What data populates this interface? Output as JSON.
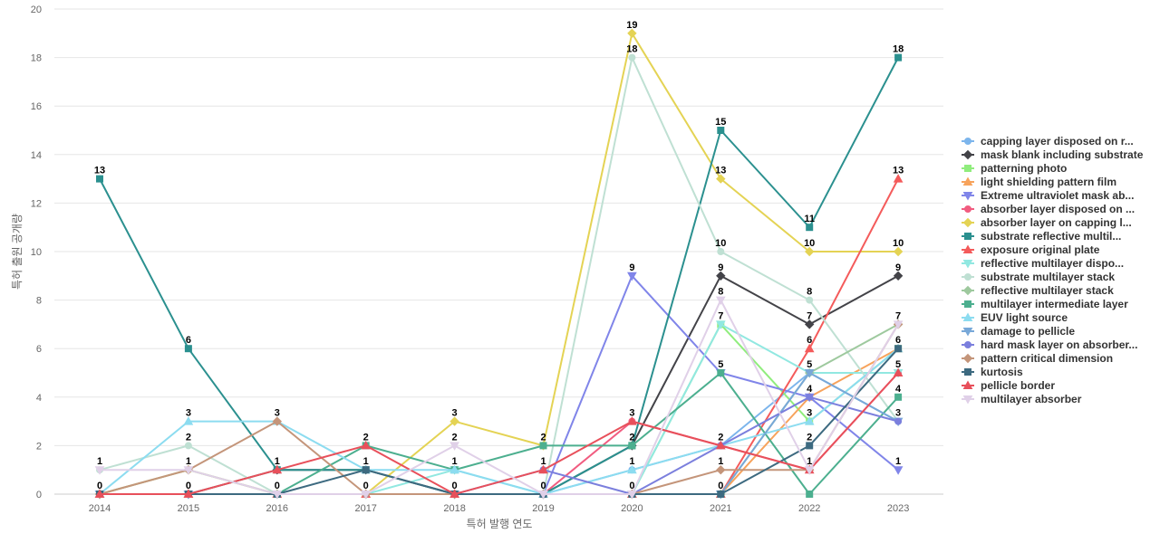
{
  "chart_data": {
    "type": "line",
    "xlabel": "특허 발행 연도",
    "ylabel": "특허 출원 공개량",
    "ylim": [
      0,
      20
    ],
    "yticks": [
      0,
      2,
      4,
      6,
      8,
      10,
      12,
      14,
      16,
      18,
      20
    ],
    "categories": [
      "2014",
      "2015",
      "2016",
      "2017",
      "2018",
      "2019",
      "2020",
      "2021",
      "2022",
      "2023"
    ],
    "grid": "horizontal",
    "legend_position": "right",
    "series": [
      {
        "name": "capping layer disposed on r...",
        "color": "#7cb5ec",
        "marker": "circle",
        "values": [
          0,
          0,
          0,
          0,
          0,
          0,
          1,
          2,
          5,
          3
        ]
      },
      {
        "name": "mask blank including substrate",
        "color": "#434348",
        "marker": "diamond",
        "values": [
          0,
          0,
          1,
          1,
          0,
          0,
          2,
          9,
          7,
          9
        ]
      },
      {
        "name": "patterning photo",
        "color": "#90ed7d",
        "marker": "square",
        "values": [
          0,
          0,
          0,
          0,
          0,
          0,
          0,
          7,
          3,
          6
        ]
      },
      {
        "name": "light shielding pattern film",
        "color": "#f7a35c",
        "marker": "triangle",
        "values": [
          0,
          0,
          0,
          0,
          0,
          0,
          0,
          0,
          4,
          6
        ]
      },
      {
        "name": "Extreme ultraviolet mask ab...",
        "color": "#8085e9",
        "marker": "triangle-down",
        "values": [
          0,
          0,
          0,
          0,
          0,
          0,
          9,
          5,
          4,
          1
        ]
      },
      {
        "name": "absorber layer disposed on ...",
        "color": "#f15c80",
        "marker": "circle",
        "values": [
          0,
          0,
          0,
          0,
          0,
          0,
          3,
          2,
          1,
          5
        ]
      },
      {
        "name": "absorber layer on capping l...",
        "color": "#e4d354",
        "marker": "diamond",
        "values": [
          0,
          1,
          0,
          0,
          3,
          2,
          19,
          13,
          10,
          10
        ]
      },
      {
        "name": "substrate reflective multil...",
        "color": "#2b908f",
        "marker": "square",
        "values": [
          13,
          6,
          1,
          1,
          0,
          0,
          2,
          15,
          11,
          18
        ]
      },
      {
        "name": "exposure original plate",
        "color": "#f45b5b",
        "marker": "triangle",
        "values": [
          0,
          0,
          0,
          0,
          0,
          0,
          0,
          0,
          6,
          13
        ]
      },
      {
        "name": "reflective multilayer dispo...",
        "color": "#91e8e1",
        "marker": "triangle-down",
        "values": [
          0,
          0,
          0,
          0,
          1,
          0,
          0,
          7,
          5,
          5
        ]
      },
      {
        "name": "substrate multilayer stack",
        "color": "#bfe0d3",
        "marker": "circle",
        "values": [
          1,
          2,
          0,
          0,
          0,
          0,
          18,
          10,
          8,
          3
        ]
      },
      {
        "name": "reflective multilayer stack",
        "color": "#9ec99e",
        "marker": "diamond",
        "values": [
          0,
          1,
          0,
          0,
          0,
          0,
          0,
          0,
          5,
          7
        ]
      },
      {
        "name": "multilayer intermediate layer",
        "color": "#4caf8f",
        "marker": "square",
        "values": [
          0,
          0,
          0,
          2,
          1,
          2,
          2,
          5,
          0,
          4
        ]
      },
      {
        "name": "EUV light source",
        "color": "#8cdcf0",
        "marker": "triangle",
        "values": [
          0,
          3,
          3,
          1,
          1,
          0,
          1,
          2,
          3,
          6
        ]
      },
      {
        "name": "damage to pellicle",
        "color": "#78a8d8",
        "marker": "triangle-down",
        "values": [
          0,
          0,
          0,
          0,
          0,
          0,
          0,
          0,
          5,
          3
        ]
      },
      {
        "name": "hard mask layer on absorber...",
        "color": "#7b7fdd",
        "marker": "circle",
        "values": [
          0,
          0,
          0,
          0,
          0,
          1,
          0,
          2,
          4,
          3
        ]
      },
      {
        "name": "pattern critical dimension",
        "color": "#c4957a",
        "marker": "diamond",
        "values": [
          0,
          1,
          3,
          0,
          0,
          0,
          0,
          1,
          1,
          7
        ]
      },
      {
        "name": "kurtosis",
        "color": "#3d6a80",
        "marker": "square",
        "values": [
          0,
          0,
          0,
          1,
          0,
          0,
          0,
          0,
          2,
          6
        ]
      },
      {
        "name": "pellicle border",
        "color": "#e8505b",
        "marker": "triangle",
        "values": [
          0,
          0,
          1,
          2,
          0,
          1,
          3,
          2,
          1,
          5
        ]
      },
      {
        "name": "multilayer absorber",
        "color": "#e0d0e8",
        "marker": "triangle-down",
        "values": [
          1,
          1,
          0,
          0,
          2,
          0,
          0,
          8,
          1,
          7
        ]
      }
    ],
    "data_labels": [
      {
        "x": "2014",
        "y": 13,
        "text": "13"
      },
      {
        "x": "2014",
        "y": 1,
        "text": "1"
      },
      {
        "x": "2014",
        "y": 0,
        "text": "0"
      },
      {
        "x": "2015",
        "y": 6,
        "text": "6"
      },
      {
        "x": "2015",
        "y": 3,
        "text": "3"
      },
      {
        "x": "2015",
        "y": 2,
        "text": "2"
      },
      {
        "x": "2015",
        "y": 1,
        "text": "1"
      },
      {
        "x": "2015",
        "y": 0,
        "text": "0"
      },
      {
        "x": "2016",
        "y": 3,
        "text": "3"
      },
      {
        "x": "2016",
        "y": 1,
        "text": "1"
      },
      {
        "x": "2016",
        "y": 0,
        "text": "0"
      },
      {
        "x": "2017",
        "y": 2,
        "text": "2"
      },
      {
        "x": "2017",
        "y": 1,
        "text": "1"
      },
      {
        "x": "2017",
        "y": 0,
        "text": "0"
      },
      {
        "x": "2018",
        "y": 3,
        "text": "3"
      },
      {
        "x": "2018",
        "y": 2,
        "text": "2"
      },
      {
        "x": "2018",
        "y": 1,
        "text": "1"
      },
      {
        "x": "2018",
        "y": 0,
        "text": "0"
      },
      {
        "x": "2019",
        "y": 2,
        "text": "2"
      },
      {
        "x": "2019",
        "y": 1,
        "text": "1"
      },
      {
        "x": "2019",
        "y": 0,
        "text": "0"
      },
      {
        "x": "2020",
        "y": 19,
        "text": "19"
      },
      {
        "x": "2020",
        "y": 18,
        "text": "18"
      },
      {
        "x": "2020",
        "y": 9,
        "text": "9"
      },
      {
        "x": "2020",
        "y": 3,
        "text": "3"
      },
      {
        "x": "2020",
        "y": 2,
        "text": "2"
      },
      {
        "x": "2020",
        "y": 1,
        "text": "1"
      },
      {
        "x": "2020",
        "y": 0,
        "text": "0"
      },
      {
        "x": "2021",
        "y": 15,
        "text": "15"
      },
      {
        "x": "2021",
        "y": 13,
        "text": "13"
      },
      {
        "x": "2021",
        "y": 10,
        "text": "10"
      },
      {
        "x": "2021",
        "y": 9,
        "text": "9"
      },
      {
        "x": "2021",
        "y": 8,
        "text": "8"
      },
      {
        "x": "2021",
        "y": 7,
        "text": "7"
      },
      {
        "x": "2021",
        "y": 5,
        "text": "5"
      },
      {
        "x": "2021",
        "y": 2,
        "text": "2"
      },
      {
        "x": "2021",
        "y": 1,
        "text": "1"
      },
      {
        "x": "2021",
        "y": 0,
        "text": "0"
      },
      {
        "x": "2022",
        "y": 11,
        "text": "11"
      },
      {
        "x": "2022",
        "y": 10,
        "text": "10"
      },
      {
        "x": "2022",
        "y": 8,
        "text": "8"
      },
      {
        "x": "2022",
        "y": 7,
        "text": "7"
      },
      {
        "x": "2022",
        "y": 6,
        "text": "6"
      },
      {
        "x": "2022",
        "y": 5,
        "text": "5"
      },
      {
        "x": "2022",
        "y": 4,
        "text": "4"
      },
      {
        "x": "2022",
        "y": 3,
        "text": "3"
      },
      {
        "x": "2022",
        "y": 2,
        "text": "2"
      },
      {
        "x": "2022",
        "y": 1,
        "text": "1"
      },
      {
        "x": "2023",
        "y": 18,
        "text": "18"
      },
      {
        "x": "2023",
        "y": 13,
        "text": "13"
      },
      {
        "x": "2023",
        "y": 10,
        "text": "10"
      },
      {
        "x": "2023",
        "y": 9,
        "text": "9"
      },
      {
        "x": "2023",
        "y": 7,
        "text": "7"
      },
      {
        "x": "2023",
        "y": 6,
        "text": "6"
      },
      {
        "x": "2023",
        "y": 5,
        "text": "5"
      },
      {
        "x": "2023",
        "y": 4,
        "text": "4"
      },
      {
        "x": "2023",
        "y": 3,
        "text": "3"
      },
      {
        "x": "2023",
        "y": 1,
        "text": "1"
      }
    ]
  }
}
